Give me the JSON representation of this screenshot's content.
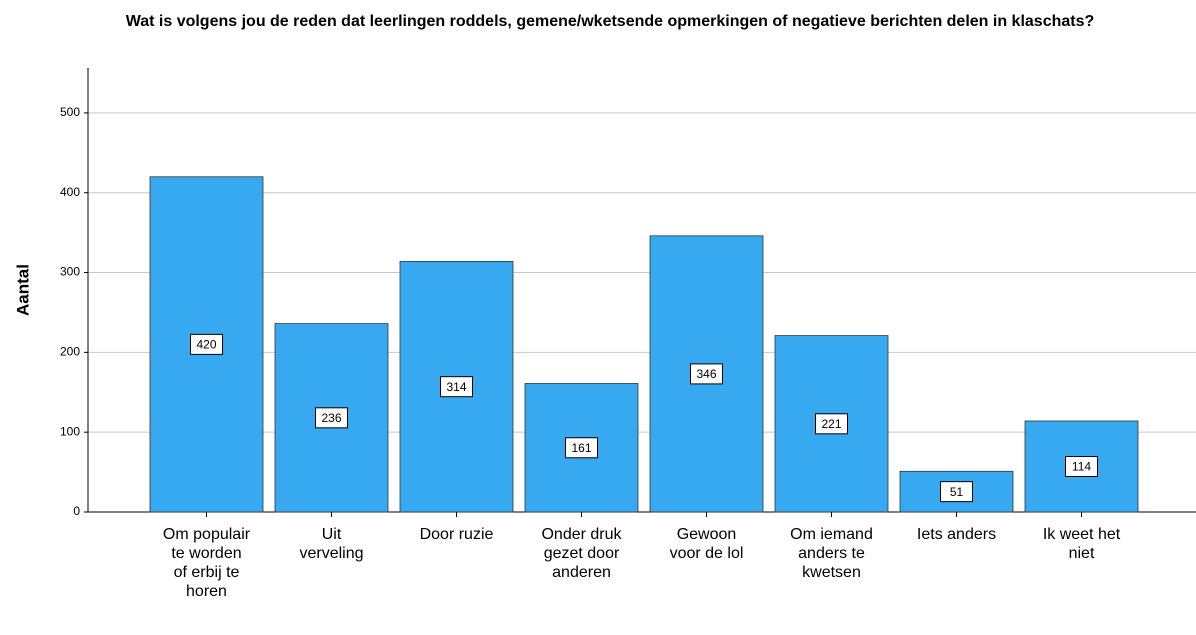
{
  "chart_data": {
    "type": "bar",
    "title": "Wat is volgens jou de reden dat leerlingen roddels, gemene/wketsende opmerkingen of negatieve berichten delen in klaschats?",
    "y_label": "Aantal",
    "categories": [
      "Om populair te worden of erbij te horen",
      "Uit verveling",
      "Door ruzie",
      "Onder druk gezet door anderen",
      "Gewoon voor de lol",
      "Om iemand anders te kwetsen",
      "Iets anders",
      "Ik weet het niet"
    ],
    "values": [
      420,
      236,
      314,
      161,
      346,
      221,
      51,
      114
    ],
    "color": "#36a9f0",
    "ylim": [
      0,
      550
    ],
    "yticks": [
      0,
      100,
      200,
      300,
      400,
      500
    ],
    "grid": true
  }
}
